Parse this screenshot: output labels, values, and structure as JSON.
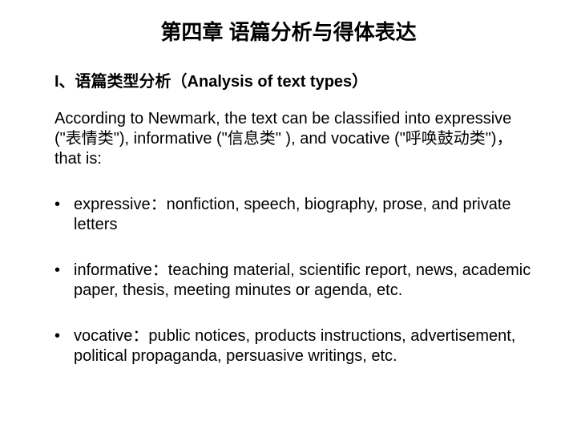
{
  "title": {
    "text": "第四章 语篇分析与得体表达",
    "fontsize": 26,
    "color": "#000000"
  },
  "subtitle": {
    "text": "I、语篇类型分析（Analysis of text types）",
    "fontsize": 20,
    "color": "#000000"
  },
  "intro": {
    "text": "According to Newmark, the text can be classified into expressive (\"表情类\"), informative (\"信息类\" ), and vocative (\"呼唤鼓动类\")，that is:",
    "fontsize": 20,
    "color": "#000000"
  },
  "bullets": [
    {
      "text": "expressive：nonfiction, speech, biography, prose, and private letters"
    },
    {
      "text": "informative：teaching material, scientific report, news, academic paper, thesis, meeting minutes or agenda, etc."
    },
    {
      "text": "vocative：public notices, products instructions, advertisement, political propaganda, persuasive writings, etc."
    }
  ],
  "styling": {
    "body_fontsize": 20,
    "background_color": "#ffffff",
    "text_color": "#000000",
    "line_height": 1.25
  }
}
